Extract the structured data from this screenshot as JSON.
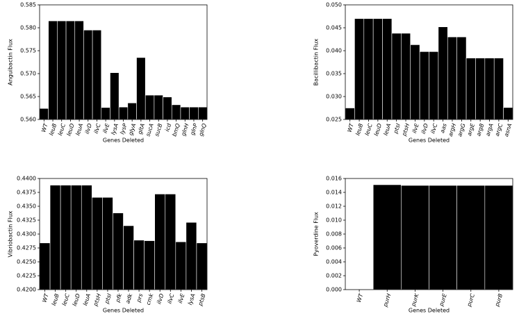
{
  "chart_data": [
    {
      "type": "bar",
      "y_label": "Anguibactin Flux",
      "x_label": "Genes Deleted",
      "color": "#000000",
      "categories": [
        "WT",
        "leuB",
        "leuC",
        "leuD",
        "leuA",
        "ilvD",
        "ilvC",
        "ilvE",
        "lysA",
        "lysP",
        "glyA",
        "gltA",
        "sucA",
        "sucB",
        "icd",
        "bmQ",
        "glnH",
        "glnP",
        "glnQ"
      ],
      "values": [
        0.5624,
        0.5815,
        0.5815,
        0.5815,
        0.5815,
        0.5795,
        0.5795,
        0.5626,
        0.5702,
        0.5627,
        0.5636,
        0.5735,
        0.5653,
        0.5653,
        0.5649,
        0.5632,
        0.5627,
        0.5627,
        0.5627
      ],
      "ylim": [
        0.56,
        0.585
      ],
      "yticks": [
        {
          "value": 0.56,
          "label": "0.560"
        },
        0.565,
        {
          "value": 0.57,
          "label": "0.570"
        },
        0.575,
        {
          "value": 0.58,
          "label": "0.580"
        },
        0.585
      ]
    },
    {
      "type": "bar",
      "y_label": "Bacillibactin Flux",
      "x_label": "Genes Deleted",
      "color": "#000000",
      "categories": [
        "WT",
        "leuB",
        "leuC",
        "leuD",
        "leuA",
        "ptsI",
        "ptsH",
        "ilvE",
        "ilvD",
        "ilvC",
        "aas",
        "argH",
        "argG",
        "argE",
        "argB",
        "argA",
        "argC",
        "asnA"
      ],
      "values": [
        0.0275,
        0.047,
        0.047,
        0.047,
        0.047,
        0.0438,
        0.0438,
        0.0413,
        0.0398,
        0.0398,
        0.0452,
        0.043,
        0.043,
        0.0384,
        0.0384,
        0.0384,
        0.0384,
        0.0276
      ],
      "ylim": [
        0.025,
        0.05
      ],
      "yticks": [
        0.025,
        {
          "value": 0.03,
          "label": "0.030"
        },
        0.035,
        {
          "value": 0.04,
          "label": "0.040"
        },
        0.045,
        {
          "value": 0.05,
          "label": "0.050"
        }
      ]
    },
    {
      "type": "bar",
      "y_label": "Vibriobactin Flux",
      "x_label": "Genes Deleted",
      "color": "#000000",
      "categories": [
        "WT",
        "leuB",
        "leuC",
        "leuD",
        "leuA",
        "ptsH",
        "ptsI",
        "pfk",
        "adk",
        "prs",
        "cmk",
        "ilvD",
        "ilvC",
        "ilvE",
        "lysA",
        "ptsB"
      ],
      "values": [
        0.4284,
        0.4388,
        0.4388,
        0.4388,
        0.4388,
        0.4366,
        0.4366,
        0.4338,
        0.4315,
        0.4289,
        0.4288,
        0.4372,
        0.4372,
        0.4286,
        0.4321,
        0.4284
      ],
      "ylim": [
        0.42,
        0.44
      ],
      "yticks": [
        {
          "value": 0.42,
          "label": "0.4200"
        },
        0.4225,
        {
          "value": 0.425,
          "label": "0.4250"
        },
        0.4275,
        {
          "value": 0.43,
          "label": "0.4300"
        },
        0.4325,
        {
          "value": 0.435,
          "label": "0.4350"
        },
        0.4375,
        {
          "value": 0.44,
          "label": "0.4400"
        }
      ]
    },
    {
      "type": "bar",
      "y_label": "Pyoverdine Flux",
      "x_label": "Genes Deleted",
      "color": "#000000",
      "categories": [
        "WT",
        "purH",
        "purK",
        "purE",
        "purC",
        "purB"
      ],
      "values": [
        0,
        0.0151,
        0.015,
        0.015,
        0.015,
        0.015
      ],
      "ylim": [
        0,
        0.016
      ],
      "yticks": [
        {
          "value": 0,
          "label": "0.000"
        },
        0.002,
        0.004,
        0.006,
        0.008,
        {
          "value": 0.01,
          "label": "0.010"
        },
        0.012,
        0.014,
        0.016
      ]
    }
  ]
}
